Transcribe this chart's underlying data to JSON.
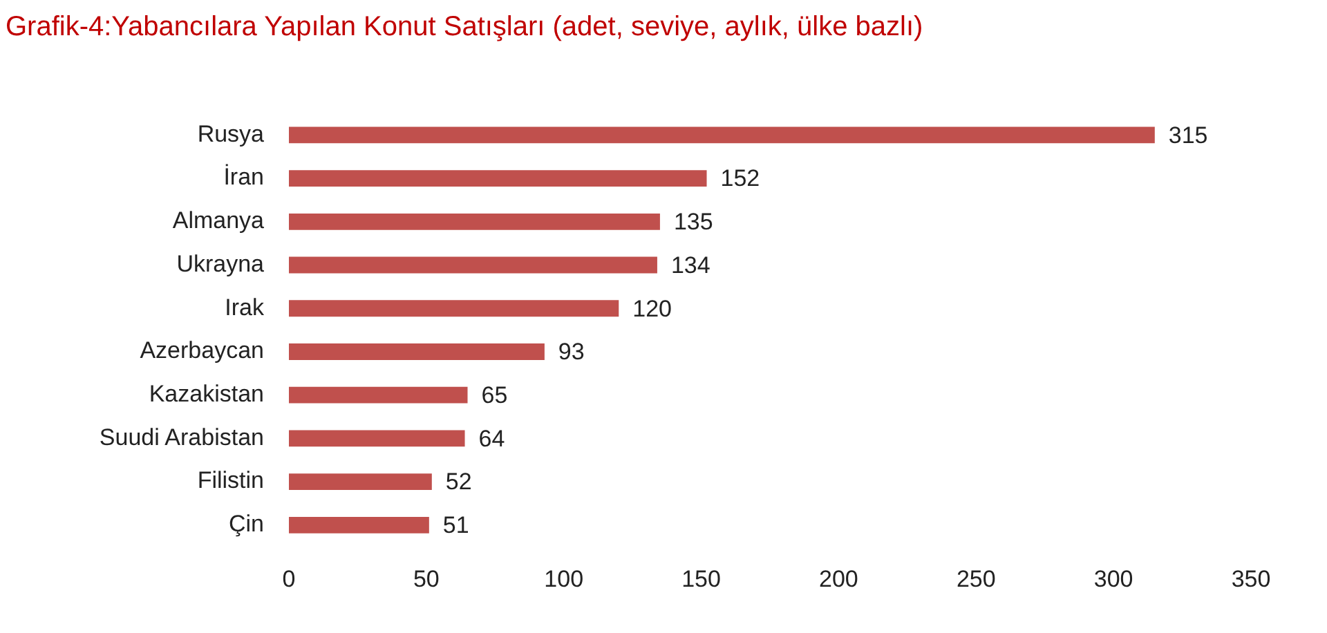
{
  "chart_data": {
    "type": "bar",
    "orientation": "horizontal",
    "title": "Grafik-4:Yabancılara Yapılan Konut Satışları (adet, seviye, aylık, ülke bazlı)",
    "categories": [
      "Rusya",
      "İran",
      "Almanya",
      "Ukrayna",
      "Irak",
      "Azerbaycan",
      "Kazakistan",
      "Suudi Arabistan",
      "Filistin",
      "Çin"
    ],
    "values": [
      315,
      152,
      135,
      134,
      120,
      93,
      65,
      64,
      52,
      51
    ],
    "color": "#c0504d",
    "xlim": [
      0,
      350
    ],
    "xticks": [
      0,
      50,
      100,
      150,
      200,
      250,
      300,
      350
    ],
    "grid": false,
    "legend": false,
    "data_labels": true
  }
}
